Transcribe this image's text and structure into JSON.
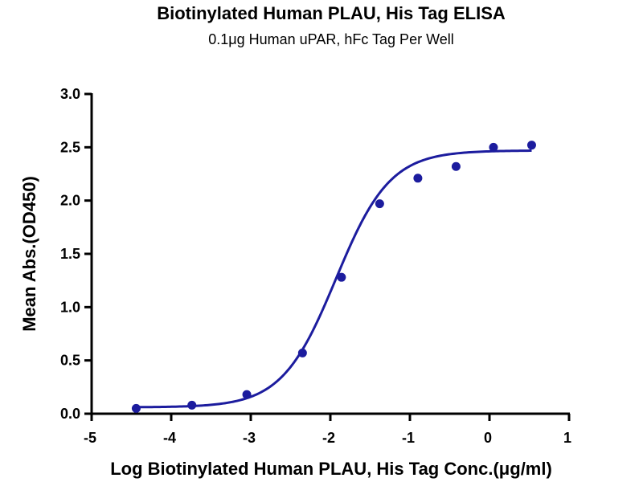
{
  "chart_data": {
    "type": "scatter",
    "title": "Biotinylated Human  PLAU, His Tag ELISA",
    "subtitle": "0.1μg Human uPAR, hFc Tag Per Well",
    "xlabel": "Log Biotinylated Human  PLAU, His Tag Conc.(μg/ml)",
    "ylabel": "Mean Abs.(OD450)",
    "xlim": [
      -5,
      1
    ],
    "ylim": [
      0,
      3.0
    ],
    "x_ticks": [
      "-5",
      "-4",
      "-3",
      "-2",
      "-1",
      "0",
      "1"
    ],
    "y_ticks": [
      "0.0",
      "0.5",
      "1.0",
      "1.5",
      "2.0",
      "2.5",
      "3.0"
    ],
    "grid": false,
    "legend": "none",
    "color": "#1c1c9e",
    "series": [
      {
        "points": [
          {
            "x": -4.44,
            "y": 0.05
          },
          {
            "x": -3.74,
            "y": 0.08
          },
          {
            "x": -3.05,
            "y": 0.18
          },
          {
            "x": -2.35,
            "y": 0.57
          },
          {
            "x": -1.86,
            "y": 1.28
          },
          {
            "x": -1.38,
            "y": 1.97
          },
          {
            "x": -0.9,
            "y": 2.21
          },
          {
            "x": -0.42,
            "y": 2.32
          },
          {
            "x": 0.05,
            "y": 2.5
          },
          {
            "x": 0.53,
            "y": 2.52
          }
        ],
        "fit": {
          "model": "4PL",
          "bottom": 0.06,
          "top": 2.47,
          "log_ec50": -1.93,
          "hill_slope": 1.28,
          "x_range": [
            -4.44,
            0.53
          ]
        }
      }
    ]
  }
}
